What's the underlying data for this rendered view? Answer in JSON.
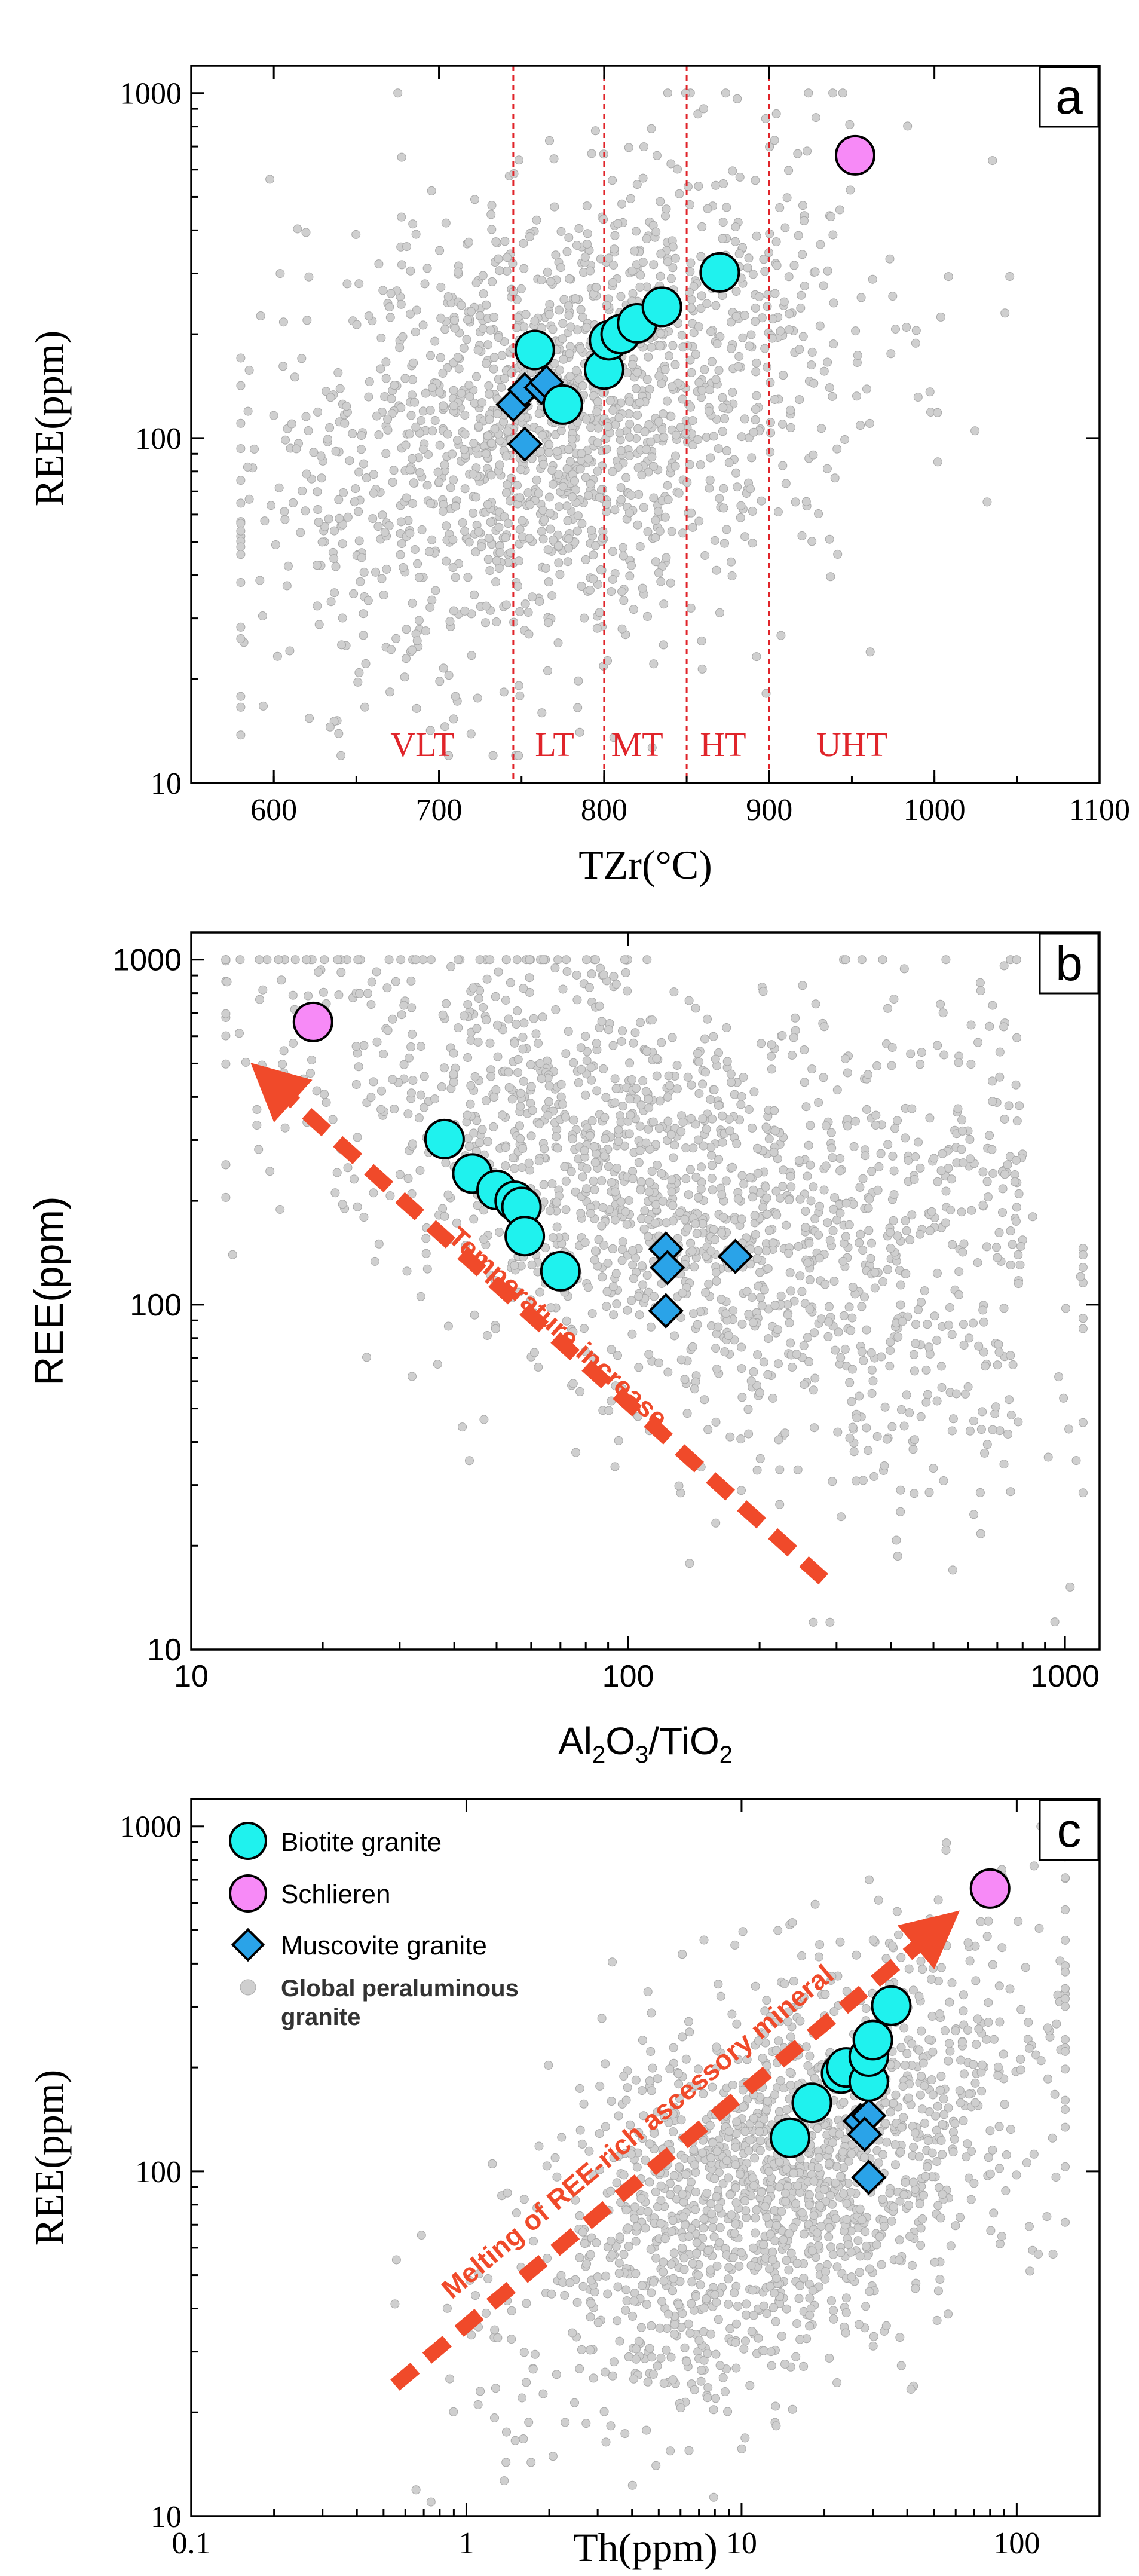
{
  "colors": {
    "biotite": "#1ff2ee",
    "schlieren": "#f78af7",
    "muscovite": "#2aa3e8",
    "global": "#cfcfcf",
    "arrow": "#f04a2a",
    "zone": "#e0242a"
  },
  "legend": {
    "biotite_label": "Biotite granite",
    "schlieren_label": "Schlieren",
    "muscovite_label": "Muscovite granite",
    "global_label_line1": "Global peraluminous",
    "global_label_line2": "granite"
  },
  "chart_data": [
    {
      "type": "scatter",
      "panel_label": "a",
      "xlabel": "TZr(°C)",
      "ylabel": "REE(ppm)",
      "x_scale": "linear",
      "y_scale": "log",
      "xlim": [
        550,
        1100
      ],
      "ylim": [
        10,
        1200
      ],
      "x_ticks": [
        "600",
        "700",
        "800",
        "900",
        "1000",
        "1100"
      ],
      "y_ticks": [
        "10",
        "100",
        "1000"
      ],
      "zone_boundaries": [
        745,
        800,
        850,
        900
      ],
      "zone_labels": [
        {
          "text": "VLT",
          "x": 690
        },
        {
          "text": "LT",
          "x": 770
        },
        {
          "text": "MT",
          "x": 820
        },
        {
          "text": "HT",
          "x": 872
        },
        {
          "text": "UHT",
          "x": 950
        }
      ],
      "series": [
        {
          "name": "Biotite granite",
          "x": [
            758,
            775,
            800,
            803,
            810,
            820,
            835,
            870
          ],
          "y": [
            180,
            125,
            158,
            192,
            200,
            215,
            240,
            302
          ]
        },
        {
          "name": "Schlieren",
          "x": [
            952
          ],
          "y": [
            660
          ]
        },
        {
          "name": "Muscovite granite",
          "x": [
            745,
            752,
            762,
            765,
            752
          ],
          "y": [
            125,
            138,
            140,
            145,
            96
          ]
        }
      ],
      "background": {
        "name": "Global peraluminous granite",
        "x_range": [
          580,
          1100
        ],
        "y_range": [
          12,
          1000
        ]
      }
    },
    {
      "type": "scatter",
      "panel_label": "b",
      "xlabel": "Al2O3/TiO2",
      "ylabel": "REE(ppm)",
      "x_scale": "log",
      "y_scale": "log",
      "xlim": [
        10,
        1200
      ],
      "ylim": [
        10,
        1200
      ],
      "x_ticks": [
        "10",
        "100",
        "1000"
      ],
      "y_ticks": [
        "10",
        "100",
        "1000"
      ],
      "annotation": {
        "text": "Temperature increase",
        "from": [
          280,
          16
        ],
        "to": [
          16,
          420
        ]
      },
      "series": [
        {
          "name": "Biotite granite",
          "x": [
            38,
            44,
            50,
            55,
            57,
            58,
            70
          ],
          "y": [
            302,
            240,
            215,
            200,
            192,
            158,
            125
          ]
        },
        {
          "name": "Schlieren",
          "x": [
            19
          ],
          "y": [
            660
          ]
        },
        {
          "name": "Muscovite granite",
          "x": [
            122,
            123,
            176,
            122
          ],
          "y": [
            145,
            128,
            138,
            96
          ]
        }
      ],
      "background": {
        "name": "Global peraluminous granite",
        "x_range": [
          12,
          1100
        ],
        "y_range": [
          12,
          1000
        ]
      }
    },
    {
      "type": "scatter",
      "panel_label": "c",
      "xlabel": "Th(ppm)",
      "ylabel": "REE(ppm)",
      "x_scale": "log",
      "y_scale": "log",
      "xlim": [
        0.1,
        200
      ],
      "ylim": [
        10,
        1200
      ],
      "x_ticks": [
        "0.1",
        "1",
        "10",
        "100"
      ],
      "y_ticks": [
        "10",
        "100",
        "1000"
      ],
      "annotation": {
        "text": "Melting of REE-rich ascessory mineral",
        "from": [
          0.55,
          24
        ],
        "to": [
          48,
          480
        ]
      },
      "series": [
        {
          "name": "Biotite granite",
          "x": [
            15,
            18,
            23,
            24,
            29,
            29,
            30,
            35
          ],
          "y": [
            125,
            158,
            192,
            200,
            182,
            215,
            240,
            302
          ]
        },
        {
          "name": "Schlieren",
          "x": [
            80
          ],
          "y": [
            660
          ]
        },
        {
          "name": "Muscovite granite",
          "x": [
            27,
            29,
            28,
            29
          ],
          "y": [
            140,
            145,
            128,
            96
          ]
        }
      ],
      "background": {
        "name": "Global peraluminous granite",
        "x_range": [
          0.3,
          150
        ],
        "y_range": [
          11,
          1000
        ]
      }
    }
  ]
}
